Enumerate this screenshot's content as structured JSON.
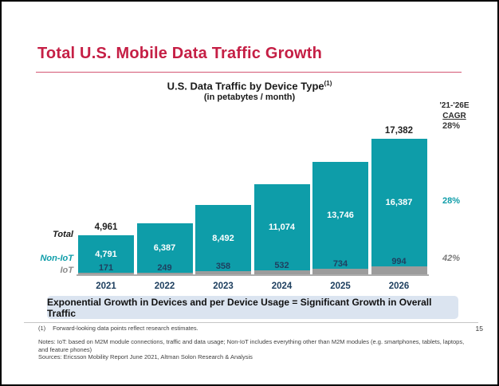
{
  "slide": {
    "title": "Total U.S. Mobile Data Traffic Growth",
    "page_number": "15"
  },
  "chart_data": {
    "type": "bar",
    "stacked": true,
    "title": "U.S. Data Traffic by Device Type",
    "title_footnote_ref": "(1)",
    "subtitle": "(in petabytes / month)",
    "unit": "petabytes per month",
    "categories": [
      "2021",
      "2022",
      "2023",
      "2024",
      "2025",
      "2026"
    ],
    "series": [
      {
        "name": "Non-IoT",
        "color": "#0E9DA9",
        "values": [
          4791,
          6387,
          8492,
          11074,
          13746,
          16387
        ]
      },
      {
        "name": "IoT",
        "color": "#9C9C9C",
        "values": [
          171,
          249,
          358,
          532,
          734,
          994
        ]
      }
    ],
    "total_labels": [
      "4,961",
      "",
      "",
      "",
      "",
      "17,382"
    ],
    "value_labels": {
      "non_iot": [
        "4,791",
        "6,387",
        "8,492",
        "11,074",
        "13,746",
        "16,387"
      ],
      "iot": [
        "171",
        "249",
        "358",
        "532",
        "734",
        "994"
      ]
    },
    "row_labels": {
      "total": "Total",
      "non_iot": "Non-IoT",
      "iot": "IoT"
    },
    "cagr": {
      "header_line1": "'21-'26E",
      "header_line2": "CAGR",
      "total": "28%",
      "non_iot": "28%",
      "iot": "42%"
    },
    "ylim": [
      0,
      17382
    ],
    "grid": false,
    "legend_position": "row-labels-left"
  },
  "banner": {
    "text": "Exponential Growth in Devices and per Device Usage = Significant Growth in Overall Traffic",
    "bg_color": "#DBE4F0"
  },
  "footnotes": {
    "footnote1_marker": "(1)",
    "footnote1_text": "Forward-looking data points reflect research estimates.",
    "notes_line1": "Notes: IoT: based on M2M module connections, traffic and data usage; Non-IoT includes everything other than M2M modules (e.g. smartphones, tablets, laptops,",
    "notes_line2": "and feature phones)",
    "sources_line": "Sources: Ericsson Mobility Report June 2021, Altman Solon Research & Analysis"
  },
  "colors": {
    "title_accent": "#C51F45",
    "bar_teal": "#0E9DA9",
    "iot_gray": "#9C9C9C",
    "navy_text": "#1F4060",
    "banner_bg": "#DBE4F0"
  }
}
